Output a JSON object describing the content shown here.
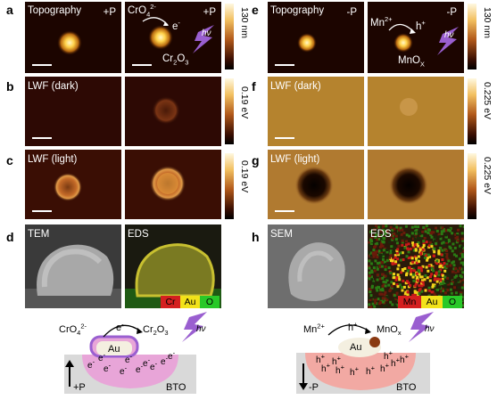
{
  "panels": {
    "a": {
      "letter": "a",
      "left_label": "Topography",
      "pol": "+P",
      "chem_in": "CrO",
      "chem_in_sub": "4",
      "chem_in_sup": "2-",
      "electron": "e",
      "electron_sup": "-",
      "chem_out": "Cr",
      "chem_out_sub1": "2",
      "chem_out_mid": "O",
      "chem_out_sub2": "3",
      "light": "hν",
      "pol2": "+P",
      "cbar": "130 nm"
    },
    "b": {
      "letter": "b",
      "label": "LWF (dark)",
      "cbar": "0.19 eV"
    },
    "c": {
      "letter": "c",
      "label": "LWF (light)",
      "cbar": "0.19 eV"
    },
    "d": {
      "letter": "d",
      "left_label": "TEM",
      "right_label": "EDS",
      "legend": [
        "Cr",
        "Au",
        "O"
      ]
    },
    "e": {
      "letter": "e",
      "left_label": "Topography",
      "pol": "-P",
      "chem_in": "Mn",
      "chem_in_sup": "2+",
      "hole": "h",
      "hole_sup": "+",
      "chem_out": "MnO",
      "chem_out_sub": "X",
      "light": "hν",
      "pol2": "-P",
      "cbar": "130 nm"
    },
    "f": {
      "letter": "f",
      "label": "LWF (dark)",
      "cbar": "0.225 eV"
    },
    "g": {
      "letter": "g",
      "label": "LWF (light)",
      "cbar": "0.225 eV"
    },
    "h": {
      "letter": "h",
      "left_label": "SEM",
      "right_label": "EDS",
      "legend": [
        "Mn",
        "Au",
        "O"
      ]
    }
  },
  "diagram_left": {
    "chem_in": "CrO",
    "chem_in_sub": "4",
    "chem_in_sup": "2-",
    "electron": "e",
    "electron_sup": "-",
    "chem_out": "Cr",
    "chem_out_sub1": "2",
    "chem_out_mid": "O",
    "chem_out_sub2": "3",
    "light": "hν",
    "metal": "Au",
    "carrier": "e",
    "carrier_sup": "-",
    "pol": "+P",
    "substrate": "BTO"
  },
  "diagram_right": {
    "chem_in": "Mn",
    "chem_in_sup": "2+",
    "hole": "h",
    "hole_sup": "+",
    "chem_out": "MnO",
    "chem_out_sub": "x",
    "light": "hν",
    "metal": "Au",
    "carrier": "h",
    "carrier_sup": "+",
    "pol": "-P",
    "substrate": "BTO"
  },
  "colors": {
    "legend_red": "#d41f1f",
    "legend_yellow": "#f2e21a",
    "legend_green": "#28c828",
    "pink": "#e8a5d8",
    "salmon": "#f2a9a3",
    "substrate": "#d9d9d9",
    "purple": "#9a5fd0"
  }
}
